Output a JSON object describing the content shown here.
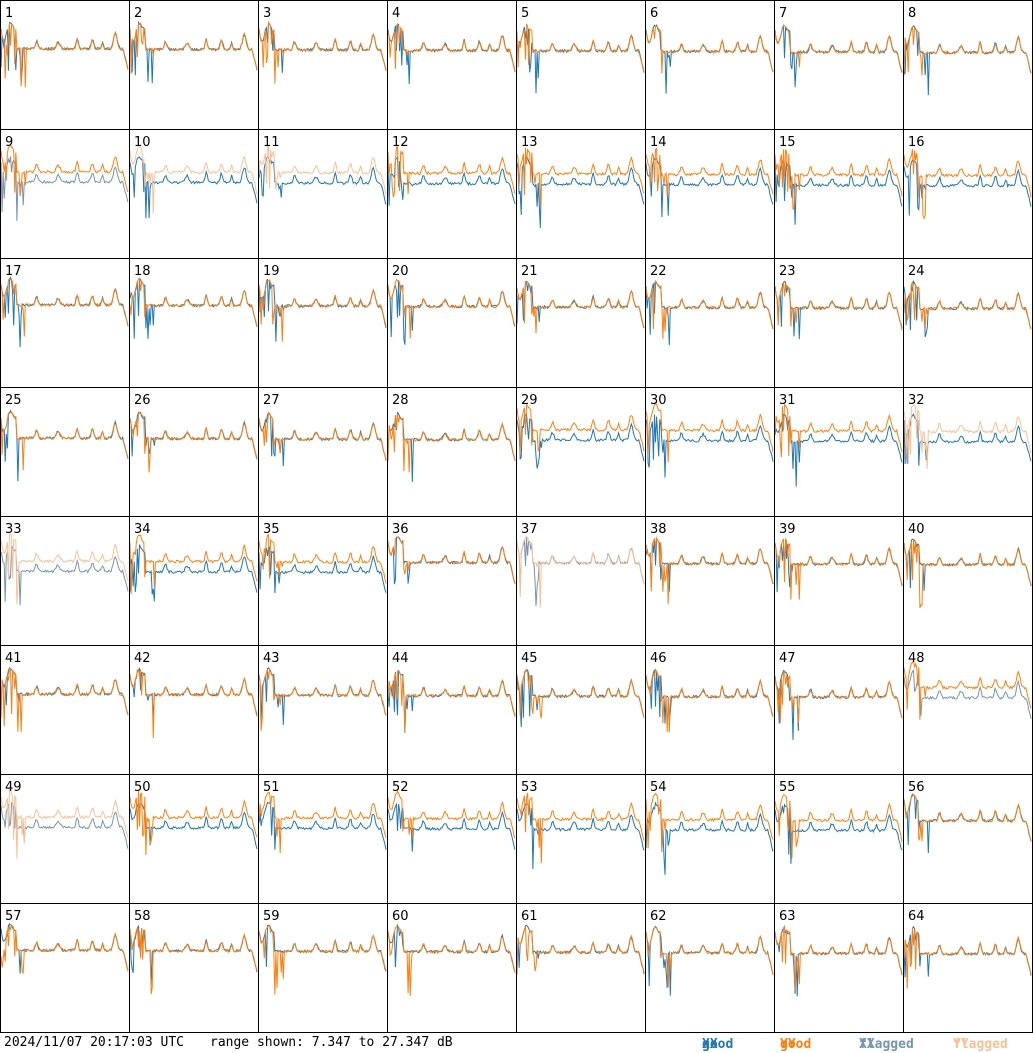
{
  "colors": {
    "good_xx": "#1f77b4",
    "good_yy": "#ff7f0e",
    "flagged_xx": "#7595b2",
    "flagged_yy": "#f9c195"
  },
  "chart_data": {
    "type": "line",
    "layout": "8x8 grid of small multiples",
    "panels": [
      "1",
      "2",
      "3",
      "4",
      "5",
      "6",
      "7",
      "8",
      "9",
      "10",
      "11",
      "12",
      "13",
      "14",
      "15",
      "16",
      "17",
      "18",
      "19",
      "20",
      "21",
      "22",
      "23",
      "24",
      "25",
      "26",
      "27",
      "28",
      "29",
      "30",
      "31",
      "32",
      "33",
      "34",
      "35",
      "36",
      "37",
      "38",
      "39",
      "40",
      "41",
      "42",
      "43",
      "44",
      "45",
      "46",
      "47",
      "48",
      "49",
      "50",
      "51",
      "52",
      "53",
      "54",
      "55",
      "56",
      "57",
      "58",
      "59",
      "60",
      "61",
      "62",
      "63",
      "64"
    ],
    "ylim": [
      7.347,
      27.347
    ],
    "yunit": "dB",
    "series": [
      {
        "name": "good XX",
        "color": "#1f77b4"
      },
      {
        "name": "good YY",
        "color": "#ff7f0e"
      },
      {
        "name": "flagged XX",
        "color": "#7595b2"
      },
      {
        "name": "flagged YY",
        "color": "#f9c195"
      }
    ],
    "flagged": {
      "xx": [
        "9",
        "33",
        "37",
        "48",
        "49"
      ],
      "yy": [
        "10",
        "11",
        "32",
        "33",
        "37",
        "49"
      ]
    },
    "legend_position": "bottom-right"
  },
  "footer": {
    "timestamp": "2024/11/07 20:17:03 UTC",
    "range_text": "range shown: 7.347 to 27.347 dB",
    "legend": [
      {
        "prefix": "good ",
        "pol": "XX",
        "key": "good_xx"
      },
      {
        "prefix": "good ",
        "pol": "YY",
        "key": "good_yy"
      },
      {
        "prefix": "flagged ",
        "pol": "XX",
        "key": "flagged_xx"
      },
      {
        "prefix": "flagged ",
        "pol": "YY",
        "key": "flagged_yy"
      }
    ]
  }
}
